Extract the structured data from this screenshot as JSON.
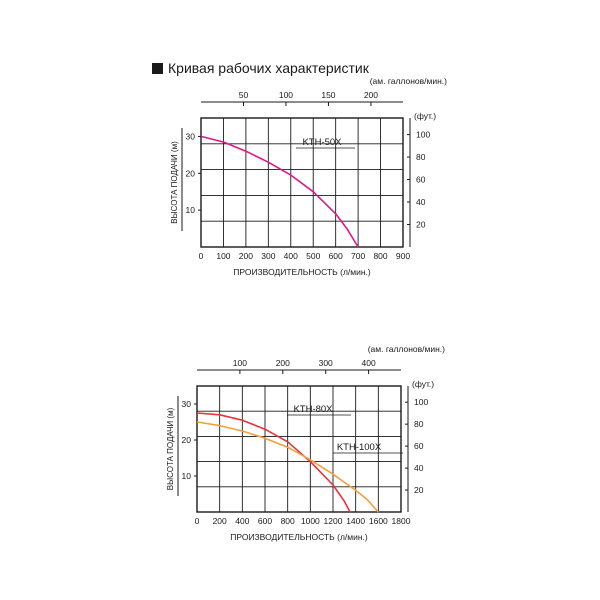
{
  "title": "Кривая рабочих характеристик",
  "chart_data": [
    {
      "type": "line",
      "xlabel": "ПРОИЗВОДИТЕЛЬНОСТЬ (л/мин.)",
      "ylabel": "ВЫСОТА ПОДАЧИ (м)",
      "x2label": "(ам. галлонов/мин.)",
      "y2label": "(фут.)",
      "xlim": [
        0,
        900
      ],
      "ylim": [
        0,
        35
      ],
      "xticks": [
        "0",
        "100",
        "200",
        "300",
        "400",
        "500",
        "600",
        "700",
        "800",
        "900"
      ],
      "yticks": [
        "10",
        "20",
        "30"
      ],
      "x2ticks": [
        "50",
        "100",
        "150",
        "200"
      ],
      "x2tick_values": [
        189.3,
        378.5,
        567.8,
        757.1
      ],
      "y2ticks": [
        "20",
        "40",
        "60",
        "80",
        "100"
      ],
      "y2tick_values": [
        6.1,
        12.2,
        18.3,
        24.4,
        30.5
      ],
      "grid": true,
      "series": [
        {
          "name": "KTH-50X",
          "color": "#e0168a",
          "x": [
            0,
            100,
            200,
            300,
            400,
            500,
            600,
            650,
            700
          ],
          "y": [
            30,
            28.5,
            26,
            23,
            19.5,
            15,
            9,
            5,
            0
          ]
        }
      ]
    },
    {
      "type": "line",
      "xlabel": "ПРОИЗВОДИТЕЛЬНОСТЬ (л/мин.)",
      "ylabel": "ВЫСОТА ПОДАЧИ (м)",
      "x2label": "(ам. галлонов/мин.)",
      "y2label": "(фут.)",
      "xlim": [
        0,
        1800
      ],
      "ylim": [
        0,
        35
      ],
      "xticks": [
        "0",
        "200",
        "400",
        "600",
        "800",
        "1000",
        "1200",
        "1400",
        "1600",
        "1800"
      ],
      "yticks": [
        "10",
        "20",
        "30"
      ],
      "x2ticks": [
        "100",
        "200",
        "300",
        "400"
      ],
      "x2tick_values": [
        378.5,
        757.1,
        1135.6,
        1514.2
      ],
      "y2ticks": [
        "20",
        "40",
        "60",
        "80",
        "100"
      ],
      "y2tick_values": [
        6.1,
        12.2,
        18.3,
        24.4,
        30.5
      ],
      "grid": true,
      "series": [
        {
          "name": "KTH-80X",
          "color": "#e8323c",
          "x": [
            0,
            200,
            400,
            600,
            800,
            1000,
            1200,
            1300,
            1350
          ],
          "y": [
            27.5,
            27,
            25.5,
            23,
            19.5,
            14,
            7.5,
            3,
            0
          ]
        },
        {
          "name": "KTH-100X",
          "color": "#f0a03c",
          "x": [
            0,
            200,
            400,
            600,
            800,
            1000,
            1200,
            1400,
            1500,
            1600
          ],
          "y": [
            25,
            24,
            22.5,
            20.5,
            18,
            14.5,
            10.5,
            6,
            3.5,
            0
          ]
        }
      ]
    }
  ]
}
